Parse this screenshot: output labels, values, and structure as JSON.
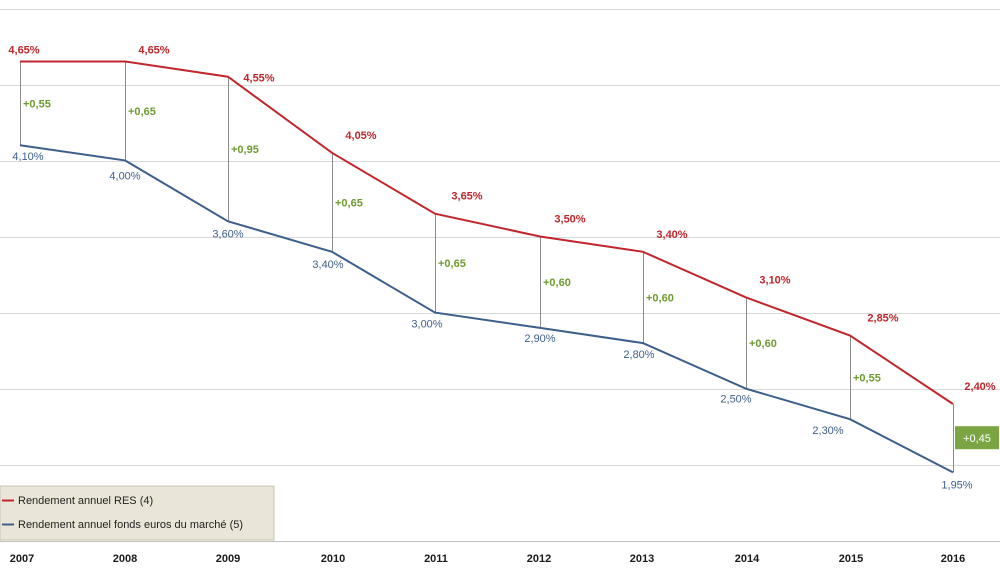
{
  "chart_data": {
    "type": "line",
    "title": "",
    "xlabel": "",
    "ylabel": "",
    "categories": [
      "2007",
      "2008",
      "2009",
      "2010",
      "2011",
      "2012",
      "2013",
      "2014",
      "2015",
      "2016"
    ],
    "ylim": [
      1.7,
      4.9
    ],
    "grid": true,
    "series": [
      {
        "name": "Rendement annuel RES (4)",
        "color": "#c0262b",
        "values": [
          4.65,
          4.65,
          4.55,
          4.05,
          3.65,
          3.5,
          3.4,
          3.1,
          2.85,
          2.4
        ],
        "labels": [
          "4,65%",
          "4,65%",
          "4,55%",
          "4,05%",
          "3,65%",
          "3,50%",
          "3,40%",
          "3,10%",
          "2,85%",
          "2,40%"
        ]
      },
      {
        "name": "Rendement annuel fonds euros du marché (5)",
        "color": "#3d5f8c",
        "values": [
          4.1,
          4.0,
          3.6,
          3.4,
          3.0,
          2.9,
          2.8,
          2.5,
          2.3,
          1.95
        ],
        "labels": [
          "4,10%",
          "4,00%",
          "3,60%",
          "3,40%",
          "3,00%",
          "2,90%",
          "2,80%",
          "2,50%",
          "2,30%",
          "1,95%"
        ]
      }
    ],
    "differences": [
      "+0,55",
      "+0,65",
      "+0,95",
      "+0,65",
      "+0,65",
      "+0,60",
      "+0,60",
      "+0,60",
      "+0,55",
      "+0,45"
    ],
    "diff_color": "#6e9a2e",
    "highlight_color": "#7aa542",
    "legend_position": "bottom-left"
  }
}
